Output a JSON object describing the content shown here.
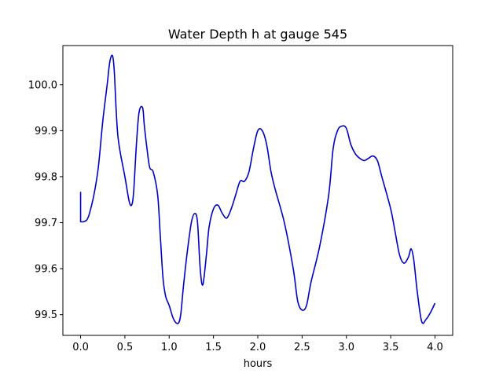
{
  "chart_data": {
    "type": "line",
    "title": "Water Depth h at gauge 545",
    "xlabel": "hours",
    "ylabel": "",
    "xlim": [
      -0.2,
      4.2
    ],
    "ylim": [
      99.455,
      100.085
    ],
    "xticks": [
      0.0,
      0.5,
      1.0,
      1.5,
      2.0,
      2.5,
      3.0,
      3.5,
      4.0
    ],
    "xtick_labels": [
      "0.0",
      "0.5",
      "1.0",
      "1.5",
      "2.0",
      "2.5",
      "3.0",
      "3.5",
      "4.0"
    ],
    "yticks": [
      99.5,
      99.6,
      99.7,
      99.8,
      99.9,
      100.0
    ],
    "ytick_labels": [
      "99.5",
      "99.6",
      "99.7",
      "99.8",
      "99.9",
      "100.0"
    ],
    "grid": false,
    "legend": "none",
    "series": [
      {
        "color": "#0000cc",
        "x": [
          0.0,
          0.0,
          0.03,
          0.07,
          0.1,
          0.15,
          0.2,
          0.25,
          0.3,
          0.33,
          0.36,
          0.38,
          0.4,
          0.42,
          0.45,
          0.5,
          0.55,
          0.58,
          0.6,
          0.63,
          0.66,
          0.7,
          0.72,
          0.75,
          0.78,
          0.82,
          0.87,
          0.9,
          0.93,
          0.96,
          1.0,
          1.05,
          1.1,
          1.13,
          1.16,
          1.2,
          1.25,
          1.29,
          1.32,
          1.35,
          1.38,
          1.42,
          1.45,
          1.5,
          1.55,
          1.6,
          1.65,
          1.7,
          1.75,
          1.8,
          1.85,
          1.9,
          1.95,
          2.0,
          2.05,
          2.1,
          2.15,
          2.2,
          2.3,
          2.4,
          2.45,
          2.5,
          2.55,
          2.6,
          2.7,
          2.8,
          2.85,
          2.9,
          2.95,
          3.0,
          3.05,
          3.1,
          3.15,
          3.2,
          3.25,
          3.3,
          3.35,
          3.4,
          3.5,
          3.55,
          3.6,
          3.65,
          3.7,
          3.73,
          3.76,
          3.8,
          3.85,
          3.9,
          3.95,
          4.0
        ],
        "y": [
          99.767,
          99.702,
          99.702,
          99.706,
          99.72,
          99.76,
          99.82,
          99.92,
          100.0,
          100.05,
          100.063,
          100.03,
          99.95,
          99.89,
          99.85,
          99.8,
          99.745,
          99.74,
          99.77,
          99.87,
          99.94,
          99.95,
          99.91,
          99.86,
          99.82,
          99.81,
          99.76,
          99.67,
          99.58,
          99.54,
          99.52,
          99.49,
          99.481,
          99.5,
          99.56,
          99.63,
          99.7,
          99.72,
          99.7,
          99.6,
          99.565,
          99.63,
          99.69,
          99.73,
          99.738,
          99.72,
          99.71,
          99.73,
          99.76,
          99.79,
          99.79,
          99.81,
          99.86,
          99.9,
          99.9,
          99.87,
          99.81,
          99.77,
          99.7,
          99.6,
          99.53,
          99.51,
          99.52,
          99.57,
          99.65,
          99.76,
          99.86,
          99.9,
          99.91,
          99.905,
          99.87,
          99.85,
          99.84,
          99.835,
          99.84,
          99.845,
          99.835,
          99.8,
          99.73,
          99.68,
          99.63,
          99.612,
          99.625,
          99.643,
          99.62,
          99.55,
          99.485,
          99.49,
          99.505,
          99.525
        ]
      }
    ]
  }
}
